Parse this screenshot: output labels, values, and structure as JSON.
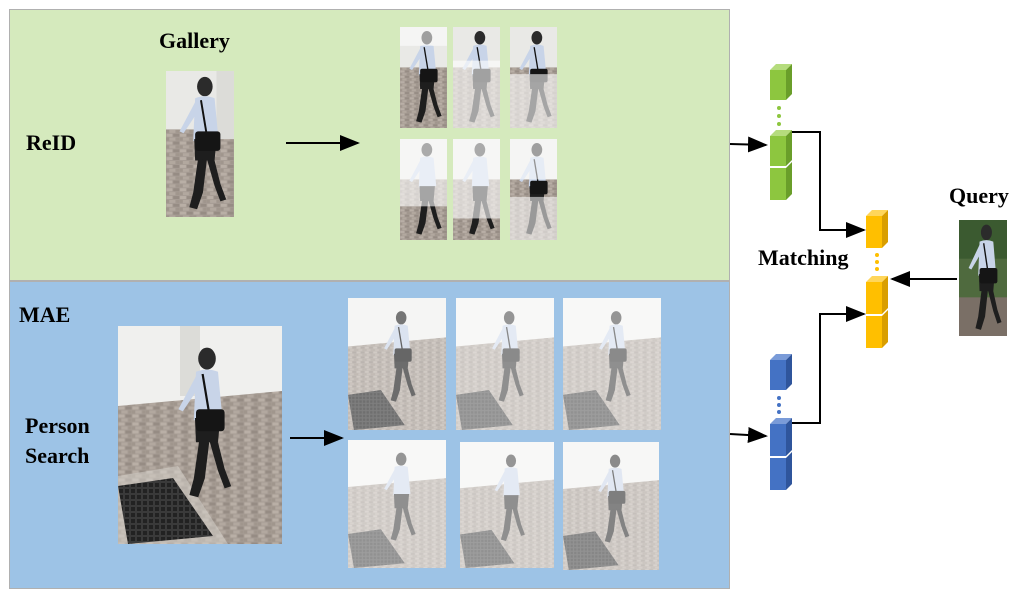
{
  "labels": {
    "gallery": "Gallery",
    "reid": "ReID",
    "mae": "MAE",
    "person_search_line1": "Person",
    "person_search_line2": "Search",
    "matching": "Matching",
    "query": "Query"
  },
  "colors": {
    "reid_panel": "#d5eabd",
    "mae_panel": "#9dc3e6",
    "green_feature": "#8dc63f",
    "yellow_feature": "#ffbf00",
    "blue_feature": "#4472c4",
    "dots_green": "#8dc63f",
    "dots_yellow": "#ffbf00",
    "dots_blue": "#4472c4"
  },
  "icons": {
    "arrow": "arrow-right-icon",
    "walking_person": "walking-person-icon"
  }
}
